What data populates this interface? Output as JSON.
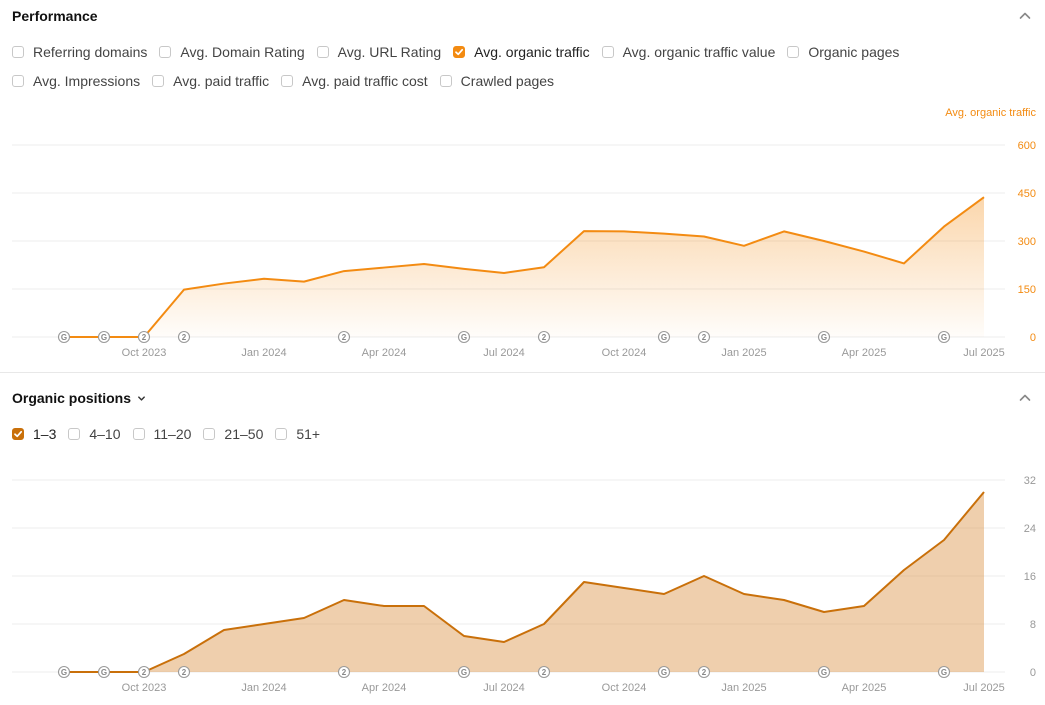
{
  "performance": {
    "title": "Performance",
    "metrics_row1": [
      {
        "label": "Referring domains",
        "checked": false
      },
      {
        "label": "Avg. Domain Rating",
        "checked": false
      },
      {
        "label": "Avg. URL Rating",
        "checked": false
      },
      {
        "label": "Avg. organic traffic",
        "checked": true
      },
      {
        "label": "Avg. organic traffic value",
        "checked": false
      },
      {
        "label": "Organic pages",
        "checked": false
      }
    ],
    "metrics_row2": [
      {
        "label": "Avg. Impressions",
        "checked": false
      },
      {
        "label": "Avg. paid traffic",
        "checked": false
      },
      {
        "label": "Avg. paid traffic cost",
        "checked": false
      },
      {
        "label": "Crawled pages",
        "checked": false
      }
    ],
    "axis_title": "Avg. organic traffic"
  },
  "positions": {
    "title": "Organic positions",
    "ranges": [
      {
        "label": "1–3",
        "checked": true
      },
      {
        "label": "4–10",
        "checked": false
      },
      {
        "label": "11–20",
        "checked": false
      },
      {
        "label": "21–50",
        "checked": false
      },
      {
        "label": "51+",
        "checked": false
      }
    ]
  },
  "colors": {
    "orange": "#f38b12",
    "brown": "#c9700a",
    "grid": "#ececec",
    "marker": "#9a9a9a"
  },
  "chart_data": [
    {
      "type": "area",
      "ylabel": "Avg. organic traffic",
      "x_ticks": [
        "Oct 2023",
        "Jan 2024",
        "Apr 2024",
        "Jul 2024",
        "Oct 2024",
        "Jan 2025",
        "Apr 2025",
        "Jul 2025"
      ],
      "y_ticks": [
        "0",
        "150",
        "300",
        "450",
        "600"
      ],
      "ylim": [
        0,
        600
      ],
      "months": [
        "2023-08",
        "2023-09",
        "2023-10",
        "2023-11",
        "2023-12",
        "2024-01",
        "2024-02",
        "2024-03",
        "2024-04",
        "2024-05",
        "2024-06",
        "2024-07",
        "2024-08",
        "2024-09",
        "2024-10",
        "2024-11",
        "2024-12",
        "2025-01",
        "2025-02",
        "2025-03",
        "2025-04",
        "2025-05",
        "2025-06",
        "2025-07"
      ],
      "values": [
        0,
        0,
        0,
        148,
        167,
        182,
        173,
        206,
        217,
        228,
        213,
        200,
        218,
        331,
        330,
        323,
        314,
        285,
        330,
        300,
        267,
        230,
        345,
        437
      ],
      "markers": [
        {
          "month": "2023-08",
          "label": "G"
        },
        {
          "month": "2023-09",
          "label": "G"
        },
        {
          "month": "2023-10",
          "label": "2"
        },
        {
          "month": "2023-11",
          "label": "2"
        },
        {
          "month": "2024-03",
          "label": "2"
        },
        {
          "month": "2024-06",
          "label": "G"
        },
        {
          "month": "2024-08",
          "label": "2"
        },
        {
          "month": "2024-11",
          "label": "G"
        },
        {
          "month": "2024-12",
          "label": "2"
        },
        {
          "month": "2025-03",
          "label": "G"
        },
        {
          "month": "2025-06",
          "label": "G"
        }
      ],
      "grid": true
    },
    {
      "type": "area",
      "x_ticks": [
        "Oct 2023",
        "Jan 2024",
        "Apr 2024",
        "Jul 2024",
        "Oct 2024",
        "Jan 2025",
        "Apr 2025",
        "Jul 2025"
      ],
      "y_ticks": [
        "0",
        "8",
        "16",
        "24",
        "32"
      ],
      "ylim": [
        0,
        32
      ],
      "months": [
        "2023-08",
        "2023-09",
        "2023-10",
        "2023-11",
        "2023-12",
        "2024-01",
        "2024-02",
        "2024-03",
        "2024-04",
        "2024-05",
        "2024-06",
        "2024-07",
        "2024-08",
        "2024-09",
        "2024-10",
        "2024-11",
        "2024-12",
        "2025-01",
        "2025-02",
        "2025-03",
        "2025-04",
        "2025-05",
        "2025-06",
        "2025-07"
      ],
      "values": [
        0,
        0,
        0,
        3,
        7,
        8,
        9,
        12,
        11,
        11,
        6,
        5,
        8,
        15,
        14,
        13,
        16,
        13,
        12,
        10,
        11,
        17,
        22,
        30
      ],
      "markers": [
        {
          "month": "2023-08",
          "label": "G"
        },
        {
          "month": "2023-09",
          "label": "G"
        },
        {
          "month": "2023-10",
          "label": "2"
        },
        {
          "month": "2023-11",
          "label": "2"
        },
        {
          "month": "2024-03",
          "label": "2"
        },
        {
          "month": "2024-06",
          "label": "G"
        },
        {
          "month": "2024-08",
          "label": "2"
        },
        {
          "month": "2024-11",
          "label": "G"
        },
        {
          "month": "2024-12",
          "label": "2"
        },
        {
          "month": "2025-03",
          "label": "G"
        },
        {
          "month": "2025-06",
          "label": "G"
        }
      ],
      "grid": true
    }
  ]
}
